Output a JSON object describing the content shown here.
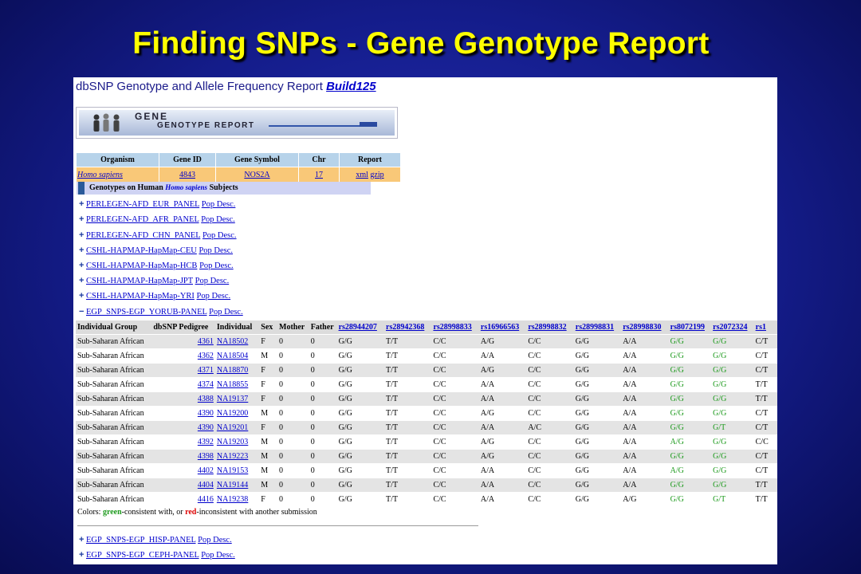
{
  "slide": {
    "title": "Finding SNPs - Gene Genotype Report"
  },
  "report": {
    "title": "dbSNP Genotype and Allele Frequency Report",
    "build_link": "Build125",
    "banner_line1": "GENE",
    "banner_line2": "GENOTYPE REPORT"
  },
  "summary": {
    "headers": [
      "Organism",
      "Gene ID",
      "Gene Symbol",
      "Chr",
      "Report"
    ],
    "organism": "Homo sapiens",
    "gene_id": "4843",
    "gene_symbol": "NOS2A",
    "chr": "17",
    "report_xml": "xml",
    "report_gzip": "gzip"
  },
  "genotypes_header": {
    "prefix": "Genotypes on Human",
    "species": "Homo sapiens",
    "suffix": "Subjects"
  },
  "panels": [
    {
      "sign": "+",
      "name": "PERLEGEN-AFD_EUR_PANEL",
      "desc": "Pop Desc."
    },
    {
      "sign": "+",
      "name": "PERLEGEN-AFD_AFR_PANEL",
      "desc": "Pop Desc."
    },
    {
      "sign": "+",
      "name": "PERLEGEN-AFD_CHN_PANEL",
      "desc": "Pop Desc."
    },
    {
      "sign": "+",
      "name": "CSHL-HAPMAP-HapMap-CEU",
      "desc": "Pop Desc."
    },
    {
      "sign": "+",
      "name": "CSHL-HAPMAP-HapMap-HCB",
      "desc": "Pop Desc."
    },
    {
      "sign": "+",
      "name": "CSHL-HAPMAP-HapMap-JPT",
      "desc": "Pop Desc."
    },
    {
      "sign": "+",
      "name": "CSHL-HAPMAP-HapMap-YRI",
      "desc": "Pop Desc."
    },
    {
      "sign": "−",
      "name": "EGP_SNPS-EGP_YORUB-PANEL",
      "desc": "Pop Desc."
    }
  ],
  "genotype_table": {
    "headers": [
      "Individual Group",
      "dbSNP Pedigree",
      "Individual",
      "Sex",
      "Mother",
      "Father"
    ],
    "snps": [
      "rs28944207",
      "rs28942368",
      "rs28998833",
      "rs16966563",
      "rs28998832",
      "rs28998831",
      "rs28998830",
      "rs8072199",
      "rs2072324",
      "rs1"
    ],
    "rows": [
      {
        "group": "Sub-Saharan African",
        "pedigree": "4361",
        "individual": "NA18502",
        "sex": "F",
        "mother": "0",
        "father": "0",
        "g": [
          "G/G",
          "T/T",
          "C/C",
          "A/G",
          "C/C",
          "G/G",
          "A/A",
          "G/G",
          "G/G",
          "C/T"
        ]
      },
      {
        "group": "Sub-Saharan African",
        "pedigree": "4362",
        "individual": "NA18504",
        "sex": "M",
        "mother": "0",
        "father": "0",
        "g": [
          "G/G",
          "T/T",
          "C/C",
          "A/A",
          "C/C",
          "G/G",
          "A/A",
          "G/G",
          "G/G",
          "C/T"
        ]
      },
      {
        "group": "Sub-Saharan African",
        "pedigree": "4371",
        "individual": "NA18870",
        "sex": "F",
        "mother": "0",
        "father": "0",
        "g": [
          "G/G",
          "T/T",
          "C/C",
          "A/G",
          "C/C",
          "G/G",
          "A/A",
          "G/G",
          "G/G",
          "C/T"
        ]
      },
      {
        "group": "Sub-Saharan African",
        "pedigree": "4374",
        "individual": "NA18855",
        "sex": "F",
        "mother": "0",
        "father": "0",
        "g": [
          "G/G",
          "T/T",
          "C/C",
          "A/A",
          "C/C",
          "G/G",
          "A/A",
          "G/G",
          "G/G",
          "T/T"
        ]
      },
      {
        "group": "Sub-Saharan African",
        "pedigree": "4388",
        "individual": "NA19137",
        "sex": "F",
        "mother": "0",
        "father": "0",
        "g": [
          "G/G",
          "T/T",
          "C/C",
          "A/A",
          "C/C",
          "G/G",
          "A/A",
          "G/G",
          "G/G",
          "T/T"
        ]
      },
      {
        "group": "Sub-Saharan African",
        "pedigree": "4390",
        "individual": "NA19200",
        "sex": "M",
        "mother": "0",
        "father": "0",
        "g": [
          "G/G",
          "T/T",
          "C/C",
          "A/G",
          "C/C",
          "G/G",
          "A/A",
          "G/G",
          "G/G",
          "C/T"
        ]
      },
      {
        "group": "Sub-Saharan African",
        "pedigree": "4390",
        "individual": "NA19201",
        "sex": "F",
        "mother": "0",
        "father": "0",
        "g": [
          "G/G",
          "T/T",
          "C/C",
          "A/A",
          "A/C",
          "G/G",
          "A/A",
          "G/G",
          "G/T",
          "C/T"
        ]
      },
      {
        "group": "Sub-Saharan African",
        "pedigree": "4392",
        "individual": "NA19203",
        "sex": "M",
        "mother": "0",
        "father": "0",
        "g": [
          "G/G",
          "T/T",
          "C/C",
          "A/G",
          "C/C",
          "G/G",
          "A/A",
          "A/G",
          "G/G",
          "C/C"
        ]
      },
      {
        "group": "Sub-Saharan African",
        "pedigree": "4398",
        "individual": "NA19223",
        "sex": "M",
        "mother": "0",
        "father": "0",
        "g": [
          "G/G",
          "T/T",
          "C/C",
          "A/G",
          "C/C",
          "G/G",
          "A/A",
          "G/G",
          "G/G",
          "C/T"
        ]
      },
      {
        "group": "Sub-Saharan African",
        "pedigree": "4402",
        "individual": "NA19153",
        "sex": "M",
        "mother": "0",
        "father": "0",
        "g": [
          "G/G",
          "T/T",
          "C/C",
          "A/A",
          "C/C",
          "G/G",
          "A/A",
          "A/G",
          "G/G",
          "C/T"
        ]
      },
      {
        "group": "Sub-Saharan African",
        "pedigree": "4404",
        "individual": "NA19144",
        "sex": "M",
        "mother": "0",
        "father": "0",
        "g": [
          "G/G",
          "T/T",
          "C/C",
          "A/A",
          "C/C",
          "G/G",
          "A/A",
          "G/G",
          "G/G",
          "T/T"
        ]
      },
      {
        "group": "Sub-Saharan African",
        "pedigree": "4416",
        "individual": "NA19238",
        "sex": "F",
        "mother": "0",
        "father": "0",
        "g": [
          "G/G",
          "T/T",
          "C/C",
          "A/A",
          "C/C",
          "G/G",
          "A/G",
          "G/G",
          "G/T",
          "T/T"
        ]
      }
    ]
  },
  "colors_note": {
    "prefix": "Colors:",
    "green_word": "green",
    "middle": "-consistent with, or",
    "red_word": "red",
    "suffix": "-inconsistent with another submission"
  },
  "panels_bottom": [
    {
      "sign": "+",
      "name": "EGP_SNPS-EGP_HISP-PANEL",
      "desc": "Pop Desc."
    },
    {
      "sign": "+",
      "name": "EGP_SNPS-EGP_CEPH-PANEL",
      "desc": "Pop Desc."
    }
  ],
  "colors": {
    "consistent_green": "#1c9a1c",
    "inconsistent_red": "#dd0000",
    "link_blue": "#0000cc"
  }
}
